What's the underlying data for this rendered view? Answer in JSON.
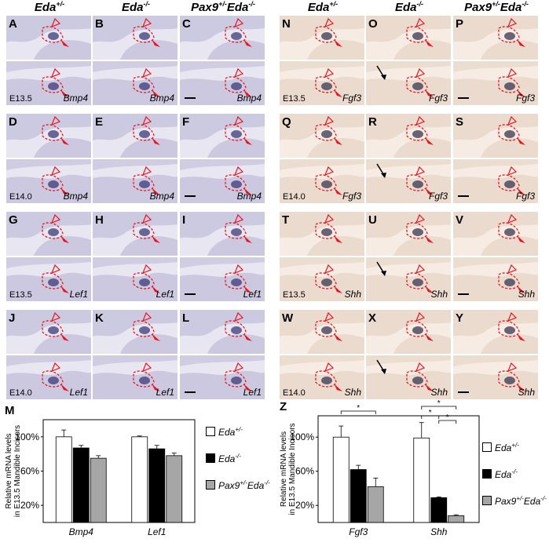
{
  "figure": {
    "left_group_headers": [
      "Eda+/-",
      "Eda-/-",
      "Pax9+/-Eda-/-"
    ],
    "right_group_headers": [
      "Eda+/-",
      "Eda-/-",
      "Pax9+/-Eda-/-"
    ],
    "panels": [
      {
        "letter": "A",
        "stage": "",
        "gene": ""
      },
      {
        "letter": "B",
        "stage": "",
        "gene": ""
      },
      {
        "letter": "C",
        "stage": "",
        "gene": ""
      },
      {
        "letter": "",
        "stage": "E13.5",
        "gene": "Bmp4"
      },
      {
        "letter": "",
        "stage": "",
        "gene": "Bmp4"
      },
      {
        "letter": "",
        "stage": "",
        "gene": "Bmp4"
      },
      {
        "letter": "D",
        "stage": "",
        "gene": ""
      },
      {
        "letter": "E",
        "stage": "",
        "gene": ""
      },
      {
        "letter": "F",
        "stage": "",
        "gene": ""
      },
      {
        "letter": "",
        "stage": "E14.0",
        "gene": "Bmp4"
      },
      {
        "letter": "",
        "stage": "",
        "gene": "Bmp4"
      },
      {
        "letter": "",
        "stage": "",
        "gene": "Bmp4"
      },
      {
        "letter": "G",
        "stage": "",
        "gene": ""
      },
      {
        "letter": "H",
        "stage": "",
        "gene": ""
      },
      {
        "letter": "I",
        "stage": "",
        "gene": ""
      },
      {
        "letter": "",
        "stage": "E13.5",
        "gene": "Lef1"
      },
      {
        "letter": "",
        "stage": "",
        "gene": "Lef1"
      },
      {
        "letter": "",
        "stage": "",
        "gene": "Lef1"
      },
      {
        "letter": "J",
        "stage": "",
        "gene": ""
      },
      {
        "letter": "K",
        "stage": "",
        "gene": ""
      },
      {
        "letter": "L",
        "stage": "",
        "gene": ""
      },
      {
        "letter": "",
        "stage": "E14.0",
        "gene": "Lef1"
      },
      {
        "letter": "",
        "stage": "",
        "gene": "Lef1"
      },
      {
        "letter": "",
        "stage": "",
        "gene": "Lef1"
      },
      {
        "letter": "N",
        "stage": "",
        "gene": ""
      },
      {
        "letter": "O",
        "stage": "",
        "gene": ""
      },
      {
        "letter": "P",
        "stage": "",
        "gene": ""
      },
      {
        "letter": "",
        "stage": "E13.5",
        "gene": "Fgf3"
      },
      {
        "letter": "",
        "stage": "",
        "gene": "Fgf3"
      },
      {
        "letter": "",
        "stage": "",
        "gene": "Fgf3"
      },
      {
        "letter": "Q",
        "stage": "",
        "gene": ""
      },
      {
        "letter": "R",
        "stage": "",
        "gene": ""
      },
      {
        "letter": "S",
        "stage": "",
        "gene": ""
      },
      {
        "letter": "",
        "stage": "E14.0",
        "gene": "Fgf3"
      },
      {
        "letter": "",
        "stage": "",
        "gene": "Fgf3"
      },
      {
        "letter": "",
        "stage": "",
        "gene": "Fgf3"
      },
      {
        "letter": "T",
        "stage": "",
        "gene": ""
      },
      {
        "letter": "U",
        "stage": "",
        "gene": ""
      },
      {
        "letter": "V",
        "stage": "",
        "gene": ""
      },
      {
        "letter": "",
        "stage": "E13.5",
        "gene": "Shh"
      },
      {
        "letter": "",
        "stage": "",
        "gene": "Shh"
      },
      {
        "letter": "",
        "stage": "",
        "gene": "Shh"
      },
      {
        "letter": "W",
        "stage": "",
        "gene": ""
      },
      {
        "letter": "X",
        "stage": "",
        "gene": ""
      },
      {
        "letter": "Y",
        "stage": "",
        "gene": ""
      },
      {
        "letter": "",
        "stage": "E14.0",
        "gene": "Shh"
      },
      {
        "letter": "",
        "stage": "",
        "gene": "Shh"
      },
      {
        "letter": "",
        "stage": "",
        "gene": "Shh"
      }
    ],
    "colors": {
      "left_tissue": "#c9c6de",
      "left_stain": "#3d3a78",
      "right_tissue": "#ead9cc",
      "right_stain": "#3a3550",
      "arrow": "#e8151f"
    }
  },
  "chart_data": [
    {
      "panel_letter": "M",
      "type": "bar",
      "title": "",
      "ylabel": "Relative mRNA levels in E13.5 Mandible Incisors",
      "ylabel_lines": [
        "Relative mRNA levels",
        "in E13.5 Mandible Incisors"
      ],
      "xlabel": "",
      "categories": [
        "Bmp4",
        "Lef1"
      ],
      "yticks": [
        "20%",
        "60%",
        "100%"
      ],
      "ytick_values": [
        20,
        60,
        100
      ],
      "ylim": [
        0,
        120
      ],
      "series": [
        {
          "name": "Eda+/-",
          "color": "#ffffff",
          "values": [
            100,
            100
          ],
          "errors": [
            8,
            1
          ]
        },
        {
          "name": "Eda-/-",
          "color": "#000000",
          "values": [
            87,
            86
          ],
          "errors": [
            3,
            4
          ]
        },
        {
          "name": "Pax9+/-Eda-/-",
          "color": "#a6a6a6",
          "values": [
            75,
            78
          ],
          "errors": [
            3,
            3
          ]
        }
      ],
      "significance": [],
      "legend_position": "right"
    },
    {
      "panel_letter": "Z",
      "type": "bar",
      "title": "",
      "ylabel": "Relative mRNA levels in E13.5 Mandible Incisors",
      "ylabel_lines": [
        "Relative mRNA levels",
        "in E13.5 Mandible Incisors"
      ],
      "xlabel": "",
      "categories": [
        "Fgf3",
        "Shh"
      ],
      "yticks": [
        "20%",
        "60%",
        "100%"
      ],
      "ytick_values": [
        20,
        60,
        100
      ],
      "ylim": [
        0,
        125
      ],
      "series": [
        {
          "name": "Eda+/-",
          "color": "#ffffff",
          "values": [
            100,
            99
          ],
          "errors": [
            13,
            18
          ]
        },
        {
          "name": "Eda-/-",
          "color": "#000000",
          "values": [
            62,
            29
          ],
          "errors": [
            5,
            1
          ]
        },
        {
          "name": "Pax9+/-Eda-/-",
          "color": "#a6a6a6",
          "values": [
            42,
            8
          ],
          "errors": [
            10,
            1
          ]
        }
      ],
      "significance": [
        {
          "category": 0,
          "from": 0,
          "to": 2,
          "label": "*"
        },
        {
          "category": 1,
          "from": 0,
          "to": 1,
          "label": "*"
        },
        {
          "category": 1,
          "from": 1,
          "to": 2,
          "label": "*"
        },
        {
          "category": 1,
          "from": 0,
          "to": 2,
          "label": "*"
        }
      ],
      "legend_position": "right"
    }
  ]
}
